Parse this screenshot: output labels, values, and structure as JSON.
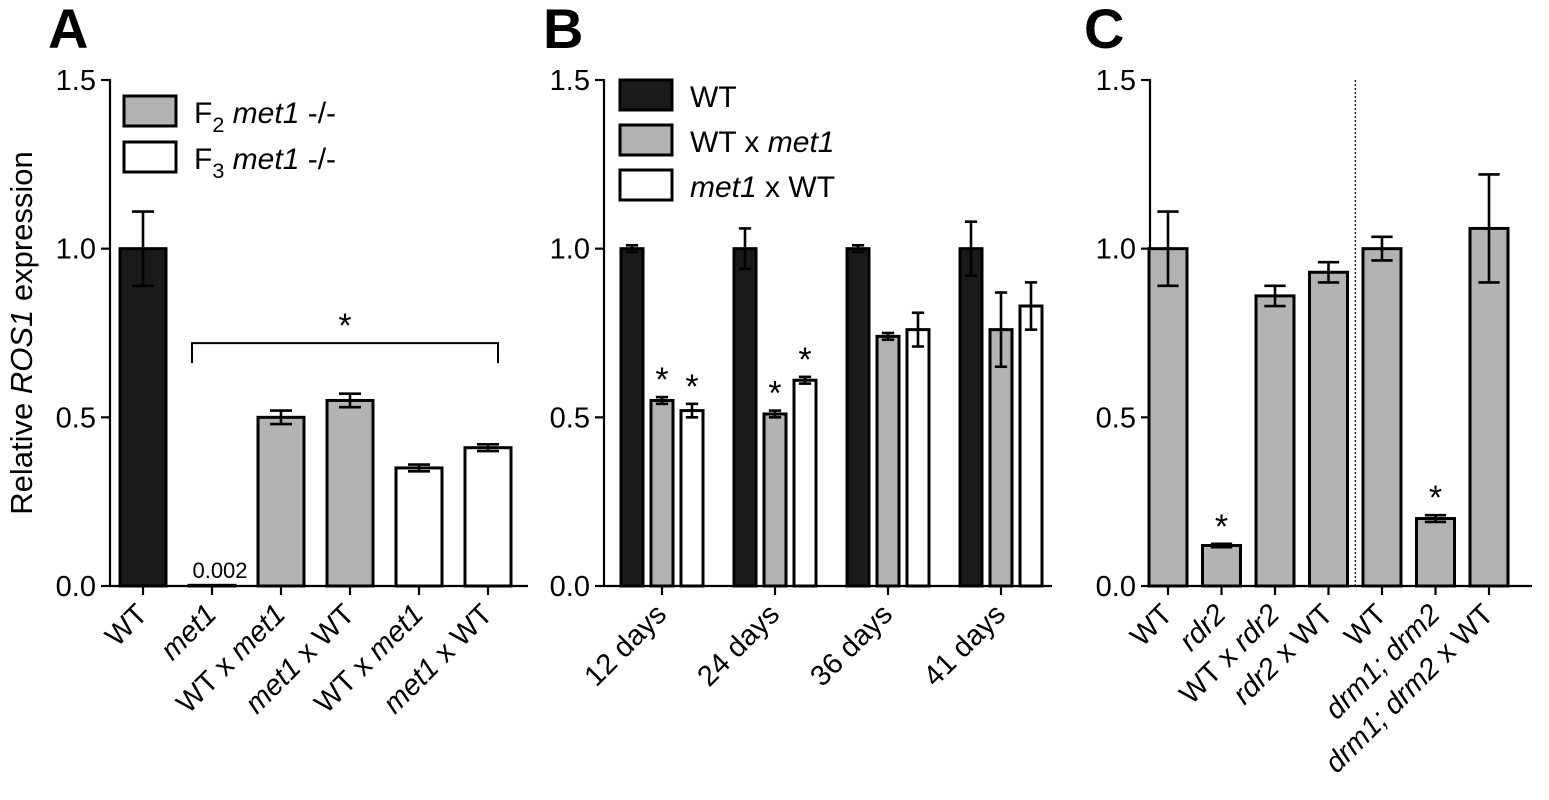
{
  "figure": {
    "ylabel_prefix": "Relative ",
    "ylabel_gene": "ROS1",
    "ylabel_suffix": " expression"
  },
  "colors": {
    "black": "#1a1a1a",
    "gray": "#b3b3b3",
    "white": "#ffffff",
    "edge": "#000000"
  },
  "chart_data": [
    {
      "id": "A",
      "panel_label": "A",
      "type": "bar",
      "ylim": [
        0,
        1.5
      ],
      "yticks": [
        "0.0",
        "0.5",
        "1.0",
        "1.5"
      ],
      "categories": [
        [
          {
            "t": "WT",
            "i": false
          }
        ],
        [
          {
            "t": "met1",
            "i": true
          }
        ],
        [
          {
            "t": "WT x ",
            "i": false
          },
          {
            "t": "met1",
            "i": true
          }
        ],
        [
          {
            "t": "met1",
            "i": true
          },
          {
            "t": " x WT",
            "i": false
          }
        ],
        [
          {
            "t": "WT x ",
            "i": false
          },
          {
            "t": "met1",
            "i": true
          }
        ],
        [
          {
            "t": "met1",
            "i": true
          },
          {
            "t": " x WT",
            "i": false
          }
        ]
      ],
      "values": [
        1.0,
        0.002,
        0.5,
        0.55,
        0.35,
        0.41
      ],
      "errors": [
        0.11,
        0,
        0.02,
        0.02,
        0.01,
        0.01
      ],
      "fills": [
        "black",
        "gray",
        "gray",
        "gray",
        "white",
        "white"
      ],
      "value_labels": [
        {
          "index": 1,
          "text": "0.002"
        }
      ],
      "bracket": {
        "from": 1,
        "to": 5,
        "y": 0.72,
        "star": "*"
      },
      "legend": [
        {
          "fill": "gray",
          "parts": [
            {
              "t": "F",
              "i": false
            },
            {
              "t": "2",
              "sub": true
            },
            {
              "t": " met1",
              "i": true
            },
            {
              "t": " -/-",
              "i": false
            }
          ]
        },
        {
          "fill": "white",
          "parts": [
            {
              "t": "F",
              "i": false
            },
            {
              "t": "3",
              "sub": true
            },
            {
              "t": " met1",
              "i": true
            },
            {
              "t": " -/-",
              "i": false
            }
          ]
        }
      ]
    },
    {
      "id": "B",
      "panel_label": "B",
      "type": "bar",
      "ylim": [
        0,
        1.5
      ],
      "yticks": [
        "0.0",
        "0.5",
        "1.0",
        "1.5"
      ],
      "groups": [
        "12 days",
        "24 days",
        "36 days",
        "41 days"
      ],
      "series": [
        {
          "fill": "black",
          "values": [
            1.0,
            1.0,
            1.0,
            1.0
          ],
          "errors": [
            0.01,
            0.06,
            0.01,
            0.08
          ],
          "stars": [
            false,
            false,
            false,
            false
          ]
        },
        {
          "fill": "gray",
          "values": [
            0.55,
            0.51,
            0.74,
            0.76
          ],
          "errors": [
            0.01,
            0.01,
            0.01,
            0.11
          ],
          "stars": [
            true,
            true,
            false,
            false
          ]
        },
        {
          "fill": "white",
          "values": [
            0.52,
            0.61,
            0.76,
            0.83
          ],
          "errors": [
            0.02,
            0.01,
            0.05,
            0.07
          ],
          "stars": [
            true,
            true,
            false,
            false
          ]
        }
      ],
      "star_symbol": "*",
      "legend": [
        {
          "fill": "black",
          "parts": [
            {
              "t": "WT",
              "i": false
            }
          ]
        },
        {
          "fill": "gray",
          "parts": [
            {
              "t": "WT x ",
              "i": false
            },
            {
              "t": "met1",
              "i": true
            }
          ]
        },
        {
          "fill": "white",
          "parts": [
            {
              "t": "met1",
              "i": true
            },
            {
              "t": " x WT",
              "i": false
            }
          ]
        }
      ]
    },
    {
      "id": "C",
      "panel_label": "C",
      "type": "bar",
      "ylim": [
        0,
        1.5
      ],
      "yticks": [
        "0.0",
        "0.5",
        "1.0",
        "1.5"
      ],
      "categories": [
        [
          {
            "t": "WT",
            "i": false
          }
        ],
        [
          {
            "t": "rdr2",
            "i": true
          }
        ],
        [
          {
            "t": "WT x ",
            "i": false
          },
          {
            "t": "rdr2",
            "i": true
          }
        ],
        [
          {
            "t": "rdr2",
            "i": true
          },
          {
            "t": " x WT",
            "i": false
          }
        ],
        [
          {
            "t": "WT",
            "i": false
          }
        ],
        [
          {
            "t": "drm1; drm2",
            "i": true
          }
        ],
        [
          {
            "t": "drm1; drm2",
            "i": true
          },
          {
            "t": " x WT",
            "i": false
          }
        ]
      ],
      "values": [
        1.0,
        0.12,
        0.86,
        0.93,
        1.0,
        0.2,
        1.06
      ],
      "errors": [
        0.11,
        0.005,
        0.03,
        0.03,
        0.035,
        0.01,
        0.16
      ],
      "fills": [
        "gray",
        "gray",
        "gray",
        "gray",
        "gray",
        "gray",
        "gray"
      ],
      "stars": [
        false,
        true,
        false,
        false,
        false,
        true,
        false
      ],
      "star_symbol": "*",
      "divider_after": 3
    }
  ]
}
